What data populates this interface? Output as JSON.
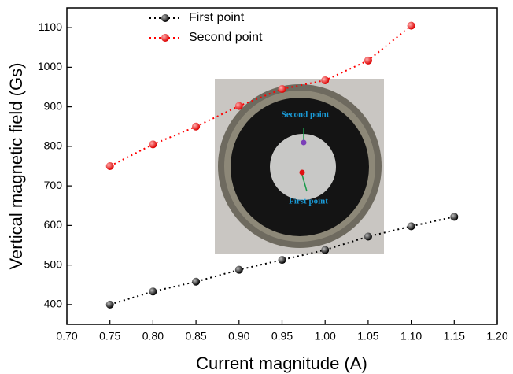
{
  "chart_data": {
    "type": "line",
    "x_label": "Current magnitude (A)",
    "y_label": "Vertical magnetic field (Gs)",
    "xlim": [
      0.7,
      1.2
    ],
    "xticks": [
      {
        "value": 0.7,
        "label": "0.70"
      },
      0.75,
      {
        "value": 0.8,
        "label": "0.80"
      },
      0.85,
      {
        "value": 0.9,
        "label": "0.90"
      },
      0.95,
      {
        "value": 1.0,
        "label": "1.00"
      },
      1.05,
      {
        "value": 1.1,
        "label": "1.10"
      },
      1.15,
      {
        "value": 1.2,
        "label": "1.20"
      }
    ],
    "ylim": [
      350,
      1150
    ],
    "yticks": [
      400,
      500,
      600,
      700,
      800,
      900,
      1000,
      1100
    ],
    "legend": "upper left",
    "series": [
      {
        "name": "First point",
        "color": "#000000",
        "x": [
          0.75,
          0.8,
          0.85,
          0.9,
          0.95,
          1.0,
          1.05,
          1.1,
          1.15
        ],
        "values": [
          400,
          433,
          458,
          488,
          513,
          538,
          572,
          598,
          622
        ]
      },
      {
        "name": "Second point",
        "color": "#ff0000",
        "x": [
          0.75,
          0.8,
          0.85,
          0.9,
          0.95,
          1.0,
          1.05,
          1.1
        ],
        "values": [
          750,
          805,
          850,
          902,
          945,
          967,
          1017,
          1105
        ]
      }
    ],
    "annotations": [
      "Second point",
      "First point"
    ]
  }
}
